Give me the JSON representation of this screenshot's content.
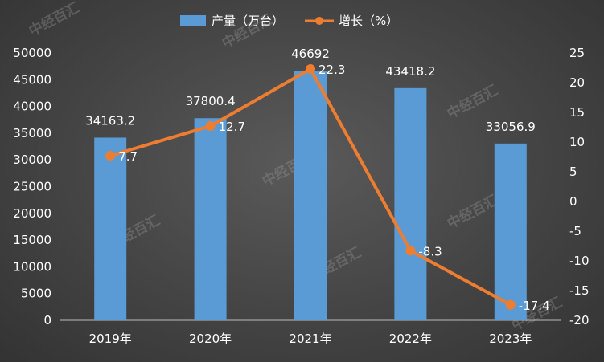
{
  "chart_data": {
    "type": "bar",
    "categories": [
      "2019年",
      "2020年",
      "2021年",
      "2022年",
      "2023年"
    ],
    "series": [
      {
        "name": "产量（万台）",
        "type": "bar",
        "axis": "left",
        "color": "#5b9bd5",
        "values": [
          34163.2,
          37800.4,
          46692,
          43418.2,
          33056.9
        ],
        "labels": [
          "34163.2",
          "37800.4",
          "46692",
          "43418.2",
          "33056.9"
        ]
      },
      {
        "name": "增长（%）",
        "type": "line",
        "axis": "right",
        "color": "#ed7d31",
        "values": [
          7.7,
          12.7,
          22.3,
          -8.3,
          -17.4
        ],
        "labels": [
          "7.7",
          "12.7",
          "22.3",
          "-8.3",
          "-17.4"
        ]
      }
    ],
    "left_axis": {
      "ylim": [
        0,
        50000
      ],
      "ticks": [
        "0",
        "5000",
        "10000",
        "15000",
        "20000",
        "25000",
        "30000",
        "35000",
        "40000",
        "45000",
        "50000"
      ]
    },
    "right_axis": {
      "ylim": [
        -20,
        25
      ],
      "ticks": [
        "-20",
        "-15",
        "-10",
        "-5",
        "0",
        "5",
        "10",
        "15",
        "20",
        "25"
      ]
    },
    "grid": false,
    "legend_position": "top-center",
    "watermark": "中经百汇"
  }
}
